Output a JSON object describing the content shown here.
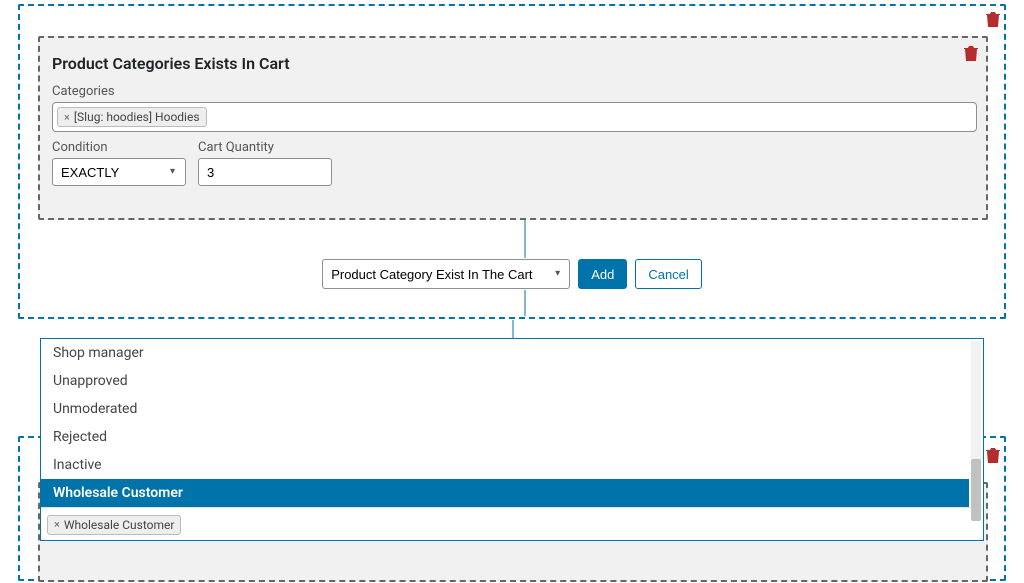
{
  "group1": {
    "block": {
      "title": "Product Categories Exists In Cart",
      "labels": {
        "categories": "Categories",
        "condition": "Condition",
        "qty": "Cart Quantity"
      },
      "categoryTag": "[Slug: hoodies] Hoodies",
      "conditionValue": "EXACTLY",
      "qtyValue": "3"
    },
    "addRow": {
      "typeValue": "Product Category Exist In The Cart",
      "addLabel": "Add",
      "cancelLabel": "Cancel"
    }
  },
  "dropdown": {
    "items": [
      {
        "label": "Shop manager",
        "selected": false
      },
      {
        "label": "Unapproved",
        "selected": false
      },
      {
        "label": "Unmoderated",
        "selected": false
      },
      {
        "label": "Rejected",
        "selected": false
      },
      {
        "label": "Inactive",
        "selected": false
      },
      {
        "label": "Wholesale Customer",
        "selected": true
      }
    ],
    "selectedTag": "Wholesale Customer"
  },
  "colors": {
    "accent": "#0073aa",
    "danger": "#b32d2e",
    "panelBg": "#f1f1f1"
  }
}
